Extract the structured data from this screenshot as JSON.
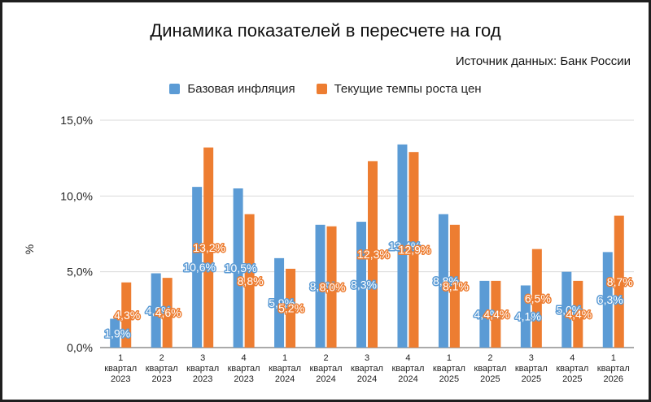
{
  "chart_data": {
    "type": "bar",
    "title": "Динамика показателей в пересчете на год",
    "subtitle": "Источник данных: Банк России",
    "ylabel": "%",
    "ylim": [
      0,
      15
    ],
    "yticks": [
      "0,0%",
      "5,0%",
      "10,0%",
      "15,0%"
    ],
    "grid": true,
    "legend_position": "top",
    "categories": [
      [
        "1",
        "квартал",
        "2023"
      ],
      [
        "2",
        "квартал",
        "2023"
      ],
      [
        "3",
        "квартал",
        "2023"
      ],
      [
        "4",
        "квартал",
        "2023"
      ],
      [
        "1",
        "квартал",
        "2024"
      ],
      [
        "2",
        "квартал",
        "2024"
      ],
      [
        "3",
        "квартал",
        "2024"
      ],
      [
        "4",
        "квартал",
        "2024"
      ],
      [
        "1",
        "квартал",
        "2025"
      ],
      [
        "2",
        "квартал",
        "2025"
      ],
      [
        "3",
        "квартал",
        "2025"
      ],
      [
        "4",
        "квартал",
        "2025"
      ],
      [
        "1",
        "квартал",
        "2026"
      ]
    ],
    "series": [
      {
        "name": "Базовая инфляция",
        "color": "#5b9bd5",
        "values": [
          1.9,
          4.9,
          10.6,
          10.5,
          5.9,
          8.1,
          8.3,
          13.4,
          8.8,
          4.4,
          4.1,
          5.0,
          6.3
        ],
        "labels": [
          "1,9%",
          "4,9%",
          "10,6%",
          "10,5%",
          "5,9%",
          "8,1%",
          "8,3%",
          "13,4%",
          "8,8%",
          "4,4%",
          "4,1%",
          "5,0%",
          "6,3%"
        ]
      },
      {
        "name": "Текущие темпы роста цен",
        "color": "#ed7d31",
        "values": [
          4.3,
          4.6,
          13.2,
          8.8,
          5.2,
          8.0,
          12.3,
          12.9,
          8.1,
          4.4,
          6.5,
          4.4,
          8.7
        ],
        "labels": [
          "4,3%",
          "4,6%",
          "13,2%",
          "8,8%",
          "5,2%",
          "8,0%",
          "12,3%",
          "12,9%",
          "8,1%",
          "4,4%",
          "6,5%",
          "4,4%",
          "8,7%"
        ]
      }
    ]
  }
}
